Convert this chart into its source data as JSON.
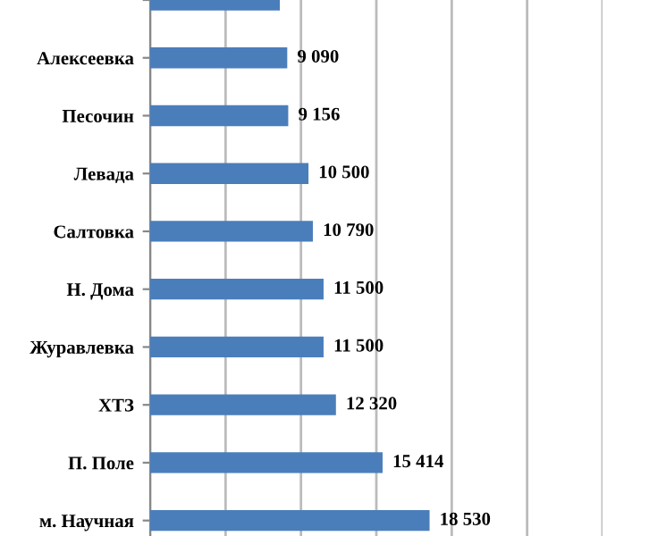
{
  "chart_data": {
    "type": "bar",
    "orientation": "horizontal",
    "categories": [
      null,
      "Алексеевка",
      "Песочин",
      "Левада",
      "Салтовка",
      "Н. Дома",
      "Журавлевка",
      "ХТЗ",
      "П. Поле",
      "м. Научная"
    ],
    "values": [
      8600,
      9090,
      9156,
      10500,
      10790,
      11500,
      11500,
      12320,
      15414,
      18530
    ],
    "value_labels": [
      null,
      "9 090",
      "9 156",
      "10 500",
      "10 790",
      "11 500",
      "11 500",
      "12 320",
      "15 414",
      "18 530"
    ],
    "color": "#4a7ebb",
    "xlim": [
      0,
      30000
    ],
    "xticks": [
      {
        "value": 0,
        "label": null
      },
      {
        "value": 5000,
        "label": null
      },
      {
        "value": 10000,
        "label": null
      },
      {
        "value": 15000,
        "label": null
      },
      {
        "value": 20000,
        "label": null
      },
      {
        "value": 25000,
        "label": null
      },
      {
        "value": 30000,
        "label": null
      }
    ],
    "tick_labels": "y",
    "grid": "x",
    "legend": false
  }
}
